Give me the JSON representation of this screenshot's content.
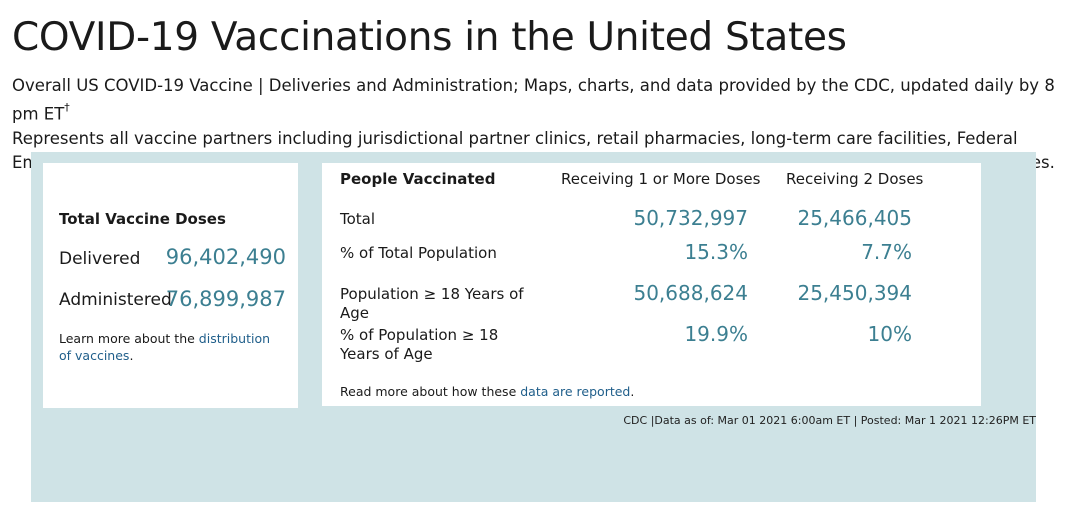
{
  "page": {
    "title": "COVID-19 Vaccinations in the United States",
    "intro_line1": "Overall US COVID-19 Vaccine | Deliveries and Administration; Maps, charts, and data provided by the CDC, updated daily by 8 pm ET",
    "intro_dagger": "†",
    "intro_line2": "Represents all vaccine partners including jurisdictional partner clinics, retail pharmacies, long-term care facilities, Federal Emergency Management Agency and Health Resources and Services Administration partner sites, and federal entity facilities."
  },
  "doses": {
    "heading": "Total Vaccine Doses",
    "delivered_label": "Delivered",
    "delivered_value": "96,402,490",
    "administered_label": "Administered",
    "administered_value": "76,899,987",
    "note_prefix": "Learn more about the ",
    "note_link": "distribution of vaccines",
    "note_suffix": "."
  },
  "people": {
    "heading": "People Vaccinated",
    "col1": "Receiving 1 or More Doses",
    "col2": "Receiving 2 Doses",
    "rows": [
      {
        "label": "Total",
        "v1": "50,732,997",
        "v2": "25,466,405"
      },
      {
        "label": "% of Total Population",
        "v1": "15.3%",
        "v2": "7.7%"
      },
      {
        "label": "Population ≥ 18 Years of Age",
        "v1": "50,688,624",
        "v2": "25,450,394"
      },
      {
        "label": "% of Population ≥ 18 Years of Age",
        "v1": "19.9%",
        "v2": "10%"
      }
    ],
    "note_prefix": "Read more about how these ",
    "note_link": "data are reported",
    "note_suffix": "."
  },
  "footer": {
    "meta": "CDC |Data as of: Mar 01 2021 6:00am ET | Posted: Mar 1 2021 12:26PM ET"
  },
  "colors": {
    "panel_bg": "#cfe3e6",
    "value_teal": "#3c7f91",
    "link_blue": "#1f5e8a"
  }
}
